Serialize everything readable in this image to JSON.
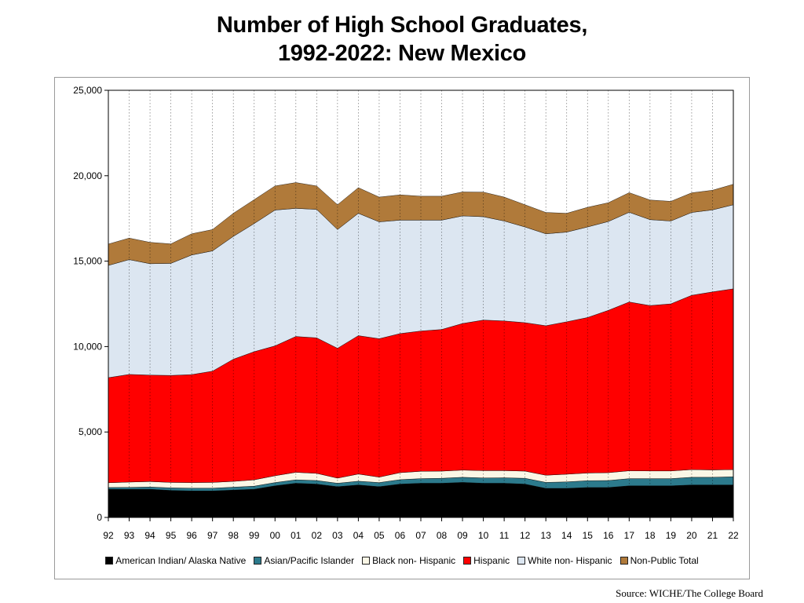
{
  "title": {
    "line1": "Number of High School Graduates,",
    "line2": "1992-2022:  New Mexico"
  },
  "source": "Source: WICHE/The College Board",
  "chart_data": {
    "type": "area",
    "stacked": true,
    "categories": [
      "92",
      "93",
      "94",
      "95",
      "96",
      "97",
      "98",
      "99",
      "00",
      "01",
      "02",
      "03",
      "04",
      "05",
      "06",
      "07",
      "08",
      "09",
      "10",
      "11",
      "12",
      "13",
      "14",
      "15",
      "16",
      "17",
      "18",
      "19",
      "20",
      "21",
      "22"
    ],
    "ylim": [
      0,
      25000
    ],
    "yticks": [
      0,
      5000,
      10000,
      15000,
      20000,
      25000
    ],
    "ytick_labels": [
      "0",
      "5,000",
      "10,000",
      "15,000",
      "20,000",
      "25,000"
    ],
    "vertical_gridlines": "dotted",
    "legend_position": "bottom",
    "series": [
      {
        "name": "American Indian/ Alaska Native",
        "color": "#000000",
        "values": [
          1650,
          1650,
          1650,
          1580,
          1550,
          1550,
          1600,
          1650,
          1850,
          2000,
          1950,
          1800,
          1900,
          1800,
          1950,
          2000,
          2000,
          2050,
          2000,
          2000,
          1950,
          1700,
          1700,
          1750,
          1750,
          1850,
          1850,
          1850,
          1900,
          1900,
          1900
        ]
      },
      {
        "name": "Asian/Pacific Islander",
        "color": "#2c7a8c",
        "values": [
          100,
          110,
          130,
          150,
          160,
          160,
          170,
          180,
          190,
          200,
          210,
          200,
          220,
          240,
          260,
          270,
          290,
          300,
          310,
          320,
          340,
          350,
          380,
          400,
          410,
          420,
          420,
          420,
          450,
          450,
          480
        ]
      },
      {
        "name": "Black non- Hispanic",
        "color": "#fbf7e6",
        "values": [
          280,
          310,
          320,
          320,
          330,
          340,
          340,
          370,
          400,
          440,
          420,
          300,
          420,
          320,
          410,
          430,
          420,
          420,
          430,
          420,
          420,
          420,
          450,
          450,
          460,
          460,
          450,
          450,
          450,
          430,
          420
        ]
      },
      {
        "name": "Hispanic",
        "color": "#ff0000",
        "values": [
          6150,
          6300,
          6230,
          6260,
          6320,
          6510,
          7150,
          7500,
          7600,
          7950,
          7930,
          7600,
          8100,
          8100,
          8140,
          8210,
          8290,
          8580,
          8810,
          8760,
          8690,
          8750,
          8920,
          9100,
          9500,
          9880,
          9680,
          9780,
          10200,
          10420,
          10580
        ]
      },
      {
        "name": "White non- Hispanic",
        "color": "#dce6f1",
        "values": [
          6570,
          6720,
          6520,
          6560,
          7000,
          7040,
          7190,
          7500,
          7950,
          7500,
          7520,
          6950,
          7160,
          6840,
          6640,
          6490,
          6400,
          6300,
          6050,
          5850,
          5600,
          5380,
          5250,
          5300,
          5200,
          5250,
          5030,
          4850,
          4850,
          4800,
          4920
        ]
      },
      {
        "name": "Non-Public Total",
        "color": "#b07a3a",
        "values": [
          1250,
          1260,
          1250,
          1140,
          1240,
          1250,
          1350,
          1400,
          1410,
          1510,
          1370,
          1450,
          1500,
          1450,
          1480,
          1400,
          1400,
          1400,
          1440,
          1400,
          1300,
          1250,
          1100,
          1150,
          1100,
          1150,
          1150,
          1150,
          1150,
          1150,
          1200
        ]
      }
    ]
  }
}
